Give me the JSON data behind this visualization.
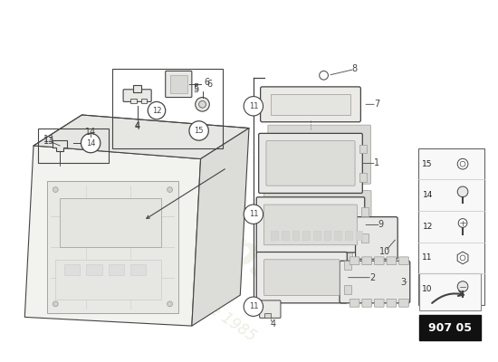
{
  "page_id": "907 05",
  "bg_color": "#ffffff",
  "line_color": "#444444",
  "light_line": "#999999",
  "very_light": "#cccccc",
  "fill_light": "#f0eff0",
  "fill_mid": "#e8e8e6",
  "fill_dark": "#d8d8d4",
  "watermark_color_1": "#e0e0cc",
  "watermark_color_2": "#d8d8c0",
  "legend_items": [
    {
      "num": "15",
      "icon": "ring_small"
    },
    {
      "num": "14",
      "icon": "bolt_head"
    },
    {
      "num": "12",
      "icon": "bolt_cross"
    },
    {
      "num": "11",
      "icon": "nut_hex"
    },
    {
      "num": "10",
      "icon": "bolt_round"
    }
  ]
}
